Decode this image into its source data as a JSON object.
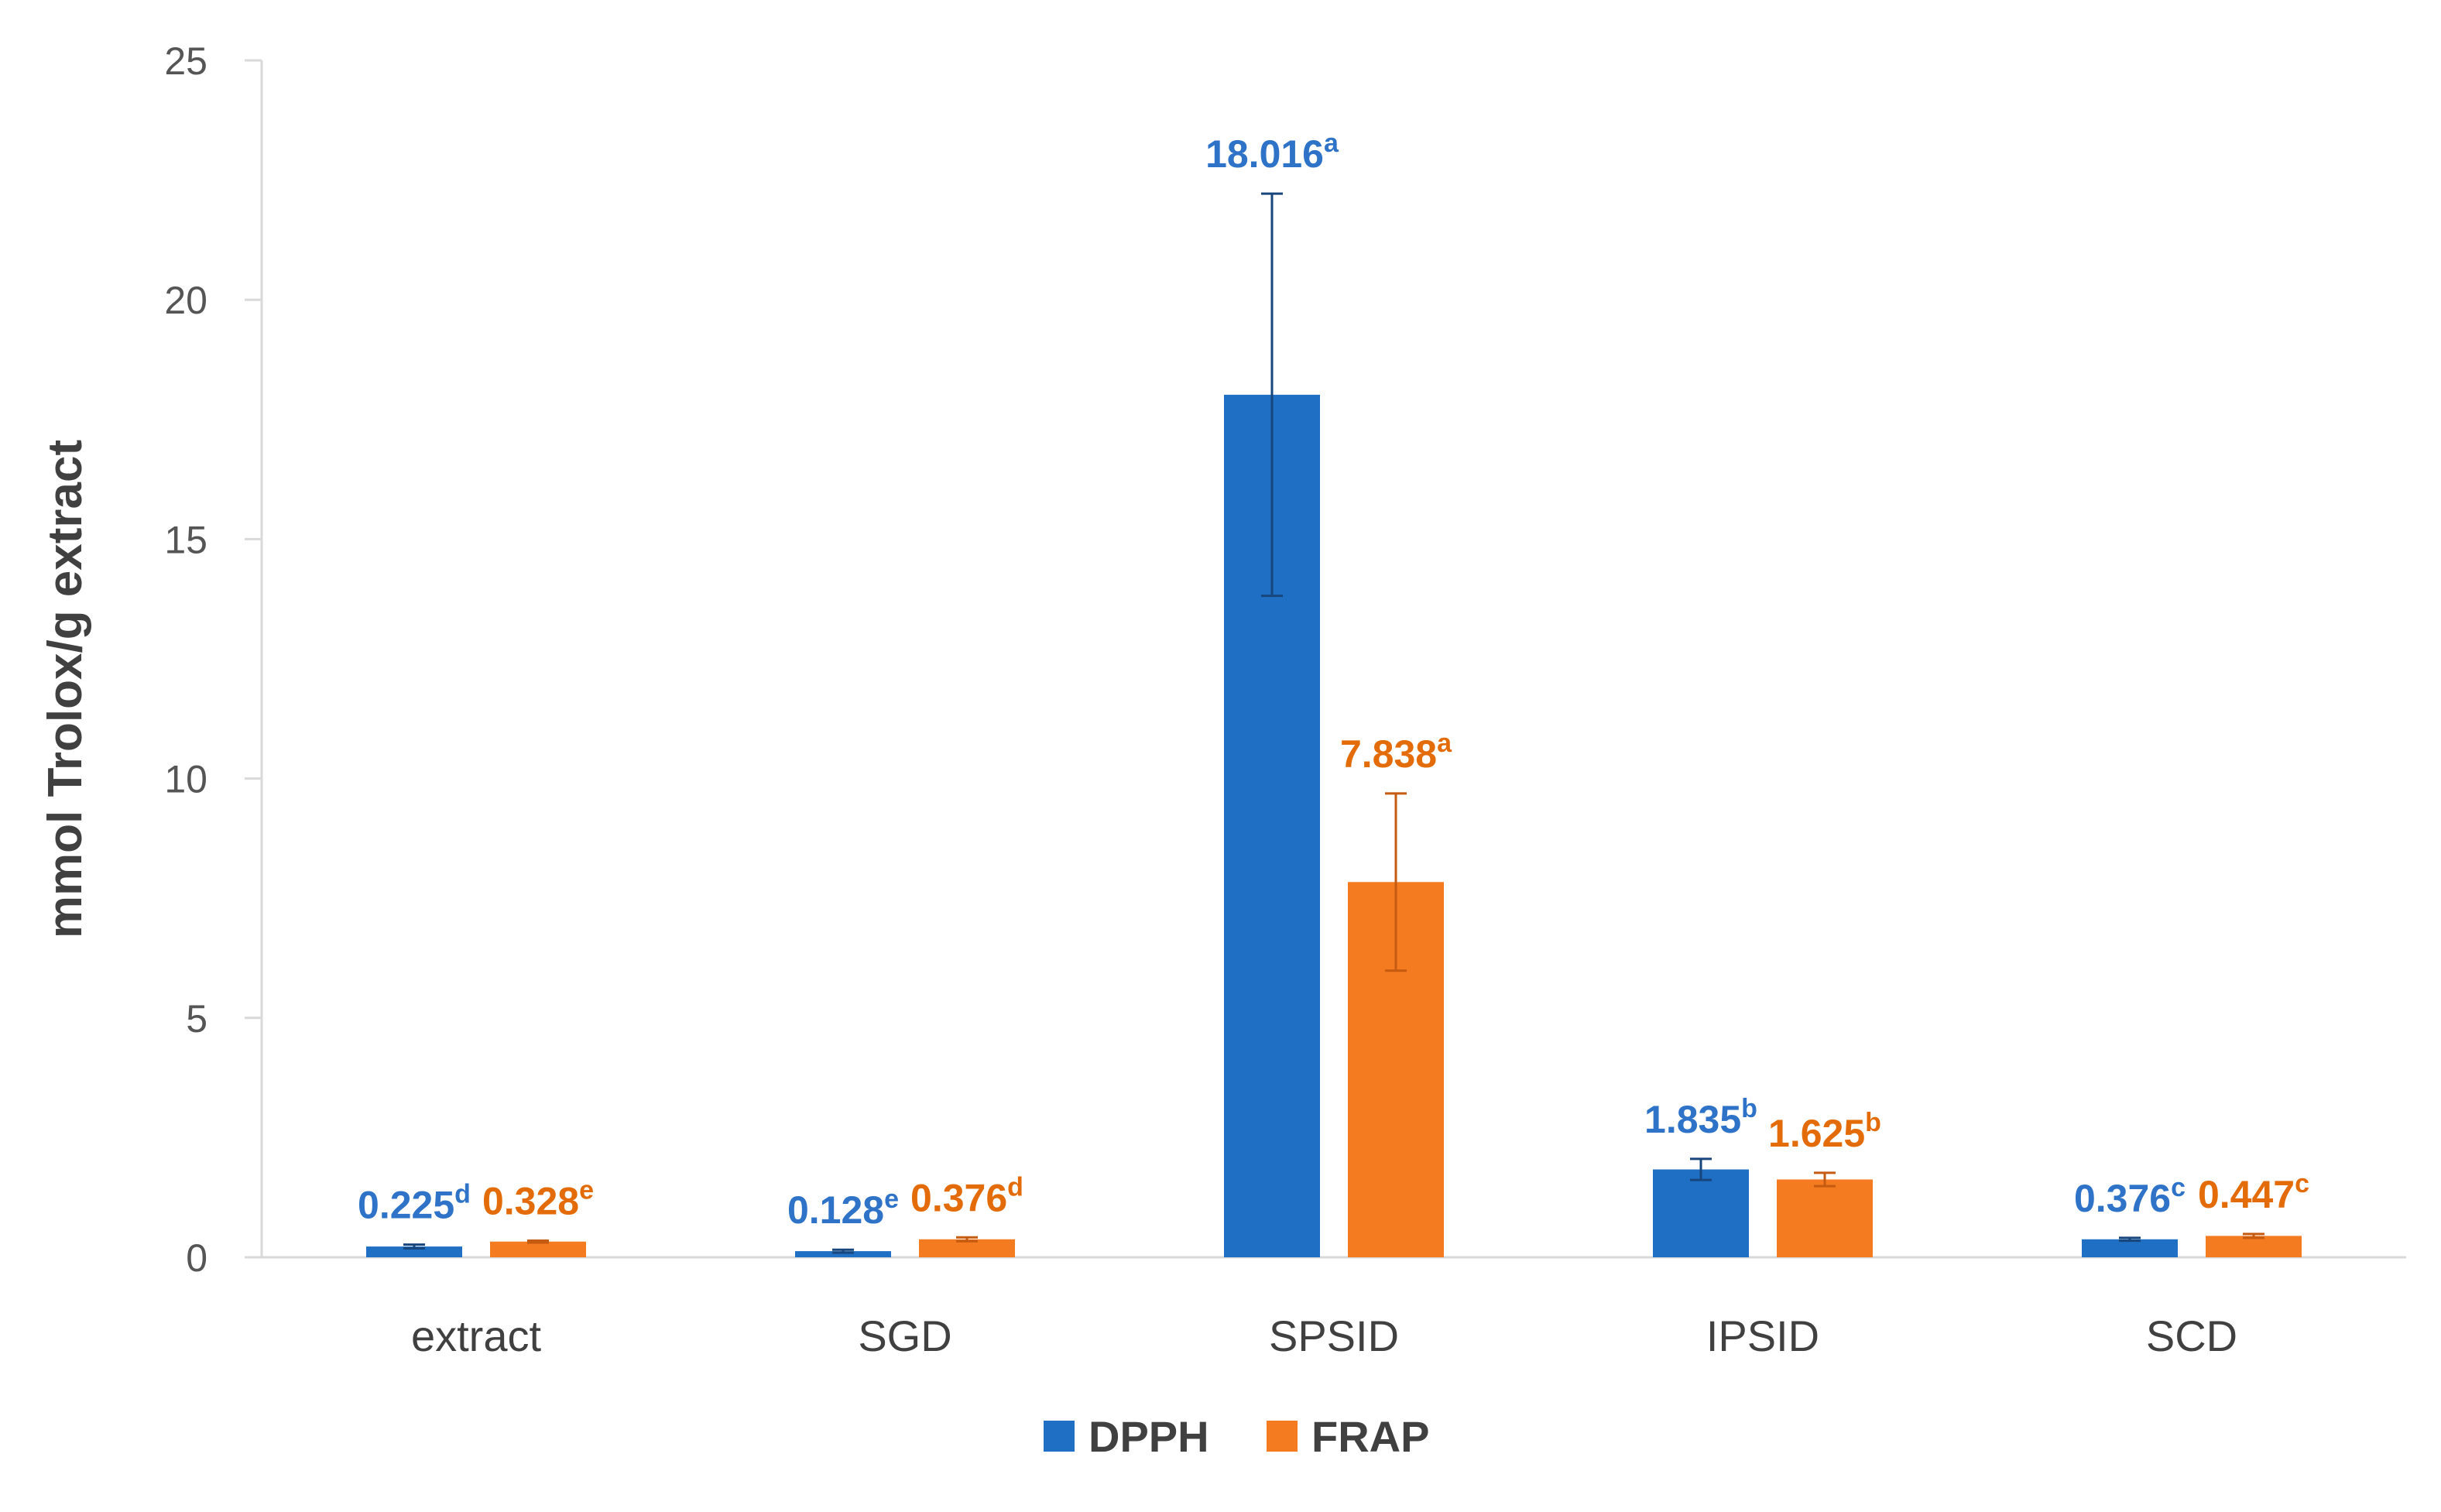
{
  "chart_data": {
    "type": "bar",
    "title": "",
    "xlabel": "",
    "ylabel": "mmol Trolox/g extract",
    "ylim": [
      0,
      25
    ],
    "yticks": [
      0,
      5,
      10,
      15,
      20,
      25
    ],
    "grid": false,
    "legend_position": "bottom-center",
    "categories": [
      "extract",
      "SGD",
      "SPSID",
      "IPSID",
      "SCD"
    ],
    "series": [
      {
        "name": "DPPH",
        "color": "#1F6FC4",
        "label_color": "#2E73C7",
        "values": [
          0.225,
          0.128,
          18.016,
          1.835,
          0.376
        ],
        "errors": [
          0.04,
          0.03,
          4.2,
          0.22,
          0.03
        ],
        "value_labels": [
          "0.225",
          "0.128",
          "18.016",
          "1.835",
          "0.376"
        ],
        "letters": [
          "d",
          "e",
          "a",
          "b",
          "c"
        ]
      },
      {
        "name": "FRAP",
        "color": "#F47B20",
        "label_color": "#E36C09",
        "values": [
          0.328,
          0.376,
          7.838,
          1.625,
          0.447
        ],
        "errors": [
          0.02,
          0.04,
          1.85,
          0.14,
          0.04
        ],
        "value_labels": [
          "0.328",
          "0.376",
          "7.838",
          "1.625",
          "0.447"
        ],
        "letters": [
          "e",
          "d",
          "a",
          "b",
          "c"
        ]
      }
    ]
  }
}
